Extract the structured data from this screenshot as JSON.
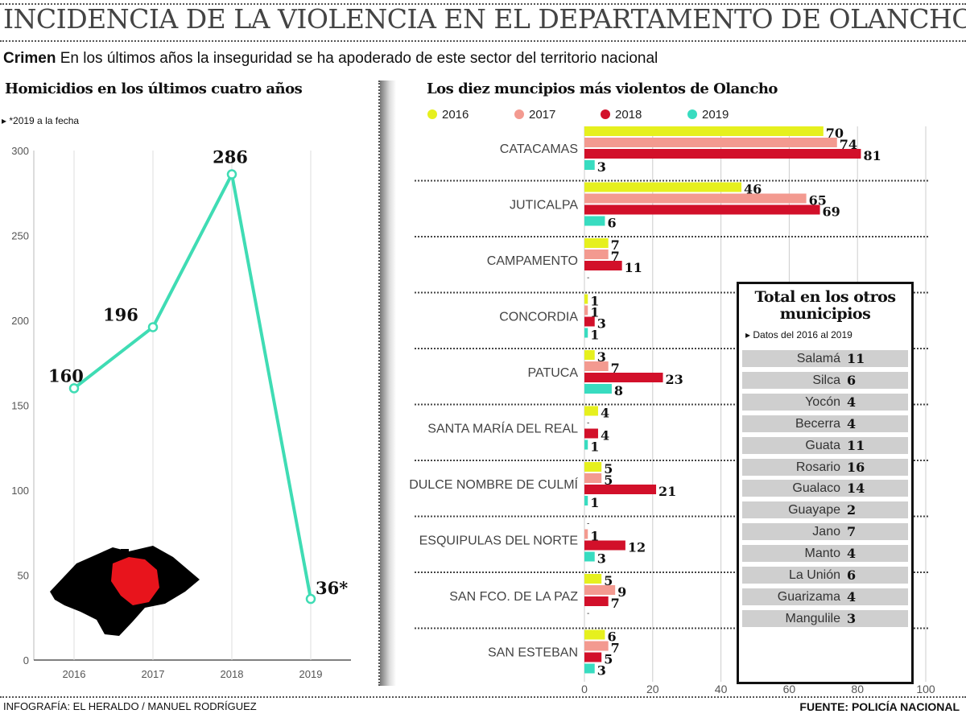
{
  "title": "INCIDENCIA DE LA VIOLENCIA EN EL DEPARTAMENTO DE OLANCHO",
  "subtitle": {
    "lead": "Crimen",
    "text": "En los últimos años la inseguridad se ha apoderado de este sector del territorio nacional"
  },
  "footer": {
    "credit": "INFOGRAFÍA: EL HERALDO / MANUEL RODRÍGUEZ",
    "source": "FUENTE: POLICÍA NACIONAL"
  },
  "colors": {
    "line": "#3fdcb4",
    "y2016": "#e6f01e",
    "y2017": "#f39a90",
    "y2018": "#d2102a",
    "y2019": "#38dcc0",
    "map_country": "#000000",
    "map_olancho": "#e8141c"
  },
  "chart_data": [
    {
      "type": "line",
      "title": "Homicidios en los últimos cuatro años",
      "note": "*2019 a la fecha",
      "x": [
        "2016",
        "2017",
        "2018",
        "2019"
      ],
      "values": [
        160,
        196,
        286,
        36
      ],
      "data_labels": [
        "160",
        "196",
        "286",
        "36*"
      ],
      "ylim": [
        0,
        300
      ],
      "yticks": [
        0,
        50,
        100,
        150,
        200,
        250,
        300
      ],
      "grid": "vertical",
      "inset": "map of Honduras with Olancho highlighted in red"
    },
    {
      "type": "bar",
      "orientation": "horizontal",
      "title": "Los diez muncipios más violentos de Olancho",
      "legend": [
        "2016",
        "2017",
        "2018",
        "2019"
      ],
      "legend_placement": "top",
      "categories": [
        "CATACAMAS",
        "JUTICALPA",
        "CAMPAMENTO",
        "CONCORDIA",
        "PATUCA",
        "SANTA MARÍA DEL REAL",
        "DULCE NOMBRE DE CULMÍ",
        "ESQUIPULAS DEL NORTE",
        "SAN FCO. DE LA PAZ",
        "SAN ESTEBAN"
      ],
      "series": [
        {
          "name": "2016",
          "values": [
            70,
            46,
            7,
            1,
            3,
            4,
            5,
            0,
            5,
            6
          ]
        },
        {
          "name": "2017",
          "values": [
            74,
            65,
            7,
            1,
            7,
            0,
            5,
            1,
            9,
            7
          ]
        },
        {
          "name": "2018",
          "values": [
            81,
            69,
            11,
            3,
            23,
            4,
            21,
            12,
            7,
            5
          ]
        },
        {
          "name": "2019",
          "values": [
            3,
            6,
            0,
            1,
            8,
            1,
            1,
            3,
            0,
            3
          ]
        }
      ],
      "xlim": [
        0,
        100
      ],
      "xticks": [
        0,
        20,
        40,
        60,
        80,
        100
      ],
      "grid": "vertical"
    },
    {
      "type": "table",
      "title": "Total en los otros municipios",
      "note": "Datos del 2016 al 2019",
      "rows": [
        {
          "name": "Salamá",
          "value": "11"
        },
        {
          "name": "Silca",
          "value": "6"
        },
        {
          "name": "Yocón",
          "value": "4"
        },
        {
          "name": "Becerra",
          "value": "4"
        },
        {
          "name": "Guata",
          "value": "11"
        },
        {
          "name": "Rosario",
          "value": "16"
        },
        {
          "name": "Gualaco",
          "value": "14"
        },
        {
          "name": "Guayape",
          "value": "2"
        },
        {
          "name": "Jano",
          "value": "7"
        },
        {
          "name": "Manto",
          "value": "4"
        },
        {
          "name": "La Unión",
          "value": "6"
        },
        {
          "name": "Guarizama",
          "value": "4"
        },
        {
          "name": "Mangulile",
          "value": "3"
        }
      ]
    }
  ]
}
